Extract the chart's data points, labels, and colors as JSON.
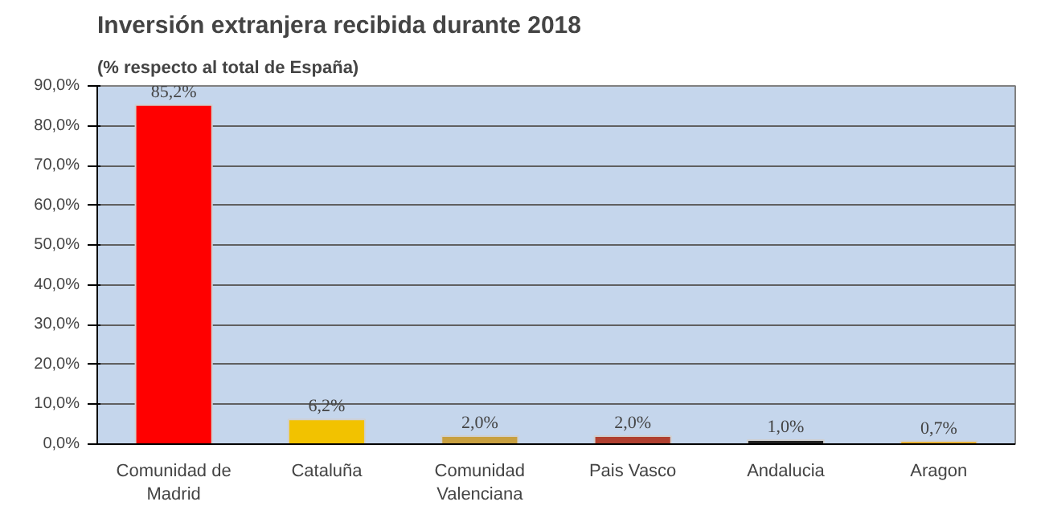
{
  "chart_data": {
    "type": "bar",
    "title": "Inversión extranjera recibida durante 2018",
    "subtitle": "(% respecto al total de España)",
    "categories": [
      "Comunidad de\nMadrid",
      "Cataluña",
      "Comunidad\nValenciana",
      "Pais Vasco",
      "Andalucia",
      "Aragon"
    ],
    "values": [
      85.2,
      6.2,
      2.0,
      2.0,
      1.0,
      0.7
    ],
    "colors": [
      "#ff0000",
      "#f2c200",
      "#c8a040",
      "#b04030",
      "#202020",
      "#f0a800"
    ],
    "value_labels": [
      "85,2%",
      "6,2%",
      "2,0%",
      "2,0%",
      "1,0%",
      "0,7%"
    ],
    "ylim": [
      0,
      90
    ],
    "yticks": [
      {
        "value": 0,
        "label": "0,0%"
      },
      {
        "value": 10,
        "label": "10,0%"
      },
      {
        "value": 20,
        "label": "20,0%"
      },
      {
        "value": 30,
        "label": "30,0%"
      },
      {
        "value": 40,
        "label": "40,0%"
      },
      {
        "value": 50,
        "label": "50,0%"
      },
      {
        "value": 60,
        "label": "60,0%"
      },
      {
        "value": 70,
        "label": "70,0%"
      },
      {
        "value": 80,
        "label": "80,0%"
      },
      {
        "value": 90,
        "label": "90,0%"
      }
    ],
    "grid": "y"
  }
}
